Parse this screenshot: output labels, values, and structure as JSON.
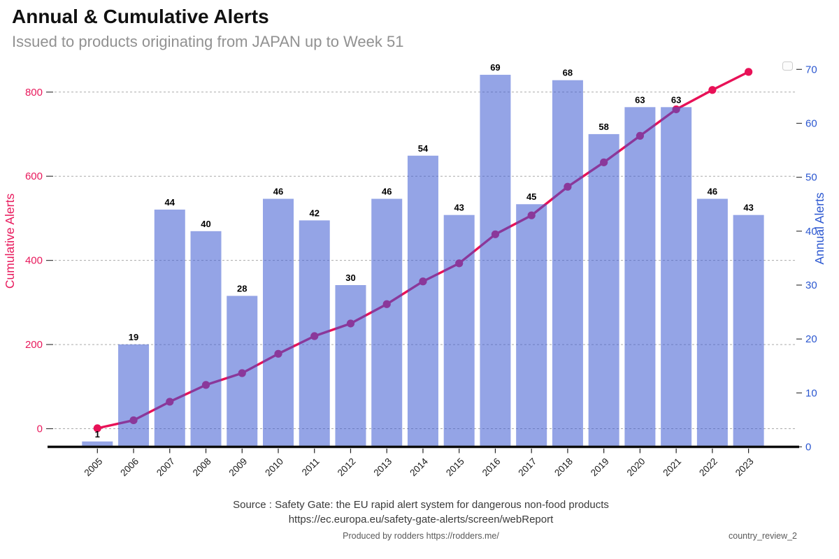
{
  "header": {
    "title": "Annual & Cumulative Alerts",
    "subtitle": "Issued to products originating from JAPAN up to Week 51"
  },
  "chart_data": {
    "type": "combo-bar-line",
    "categories": [
      "2005",
      "2006",
      "2007",
      "2008",
      "2009",
      "2010",
      "2011",
      "2012",
      "2013",
      "2014",
      "2015",
      "2016",
      "2017",
      "2018",
      "2019",
      "2020",
      "2021",
      "2022",
      "2023"
    ],
    "series": [
      {
        "name": "Annual Alerts",
        "type": "bar",
        "axis": "right",
        "values": [
          1,
          19,
          44,
          40,
          28,
          46,
          42,
          30,
          46,
          54,
          43,
          69,
          45,
          68,
          58,
          63,
          63,
          46,
          43
        ],
        "color": "rgba(60,90,210,0.55)"
      },
      {
        "name": "Cumulative Alerts",
        "type": "line",
        "axis": "left",
        "values": [
          1,
          20,
          64,
          104,
          132,
          178,
          220,
          250,
          296,
          350,
          393,
          462,
          507,
          575,
          633,
          696,
          759,
          805,
          848
        ],
        "color": "#e81157"
      }
    ],
    "left_axis": {
      "label": "Cumulative Alerts",
      "color": "#e8195c",
      "ticks": [
        0,
        200,
        400,
        600,
        800
      ],
      "range_note": "0 to 800+"
    },
    "right_axis": {
      "label": "Annual Alerts",
      "color": "#2b57d0",
      "ticks": [
        0,
        10,
        20,
        30,
        40,
        50,
        60,
        70
      ],
      "range_note": "0 to 70"
    },
    "grid": "horizontal dashed at left-axis ticks",
    "legend": "empty box top-right",
    "bar_labels_bold": true
  },
  "footer": {
    "source_line1": "Source : Safety Gate: the EU rapid alert system for dangerous non-food products",
    "source_line2": "https://ec.europa.eu/safety-gate-alerts/screen/webReport",
    "produced_by": "Produced by rodders https://rodders.me/",
    "doc_ref": "country_review_2"
  },
  "colors": {
    "bar_fill": "rgba(60,90,210,0.55)",
    "line_stroke": "#e81157",
    "left_tick_text": "#e8195c",
    "right_tick_text": "#2b57d0",
    "gridline": "#aaaaaa",
    "axis_line": "#0b0b0b",
    "year_text": "#1a1a1a",
    "tick_dash": "#3c3c3c"
  }
}
